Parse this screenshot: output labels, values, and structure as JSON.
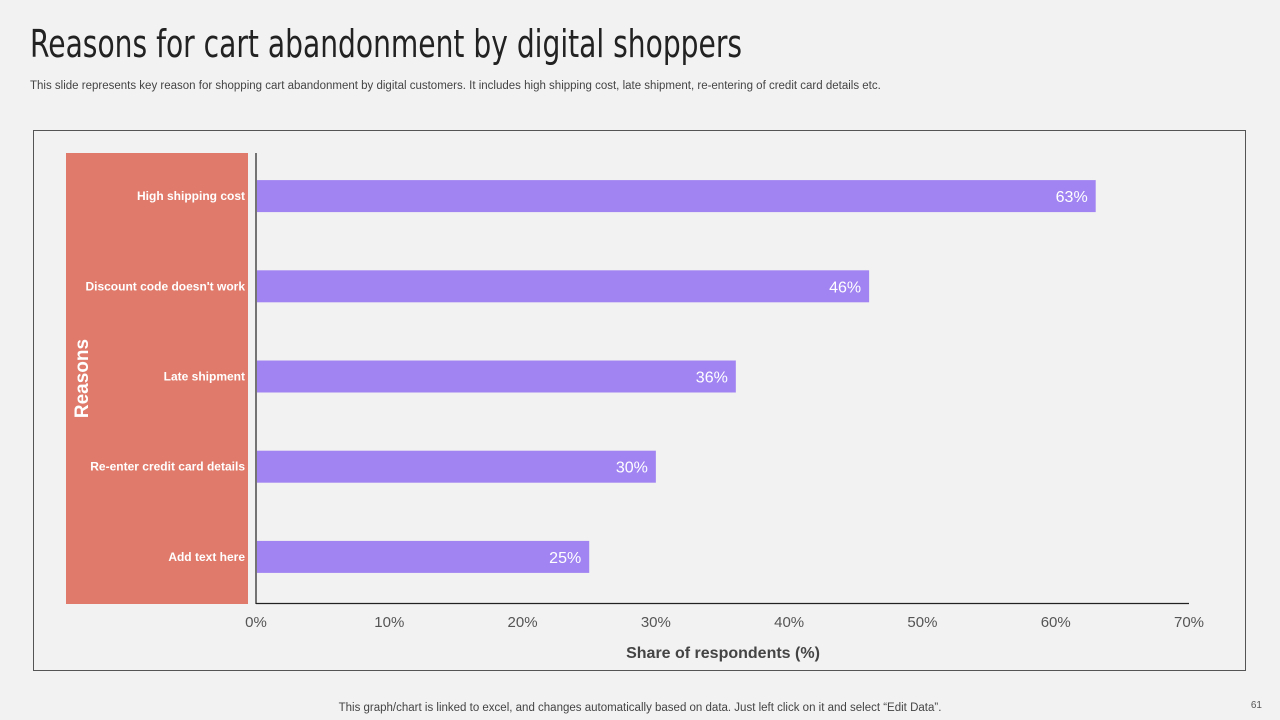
{
  "slide": {
    "title": "Reasons for cart abandonment by digital shoppers",
    "subtitle": "This slide represents  key reason for shopping cart abandonment by digital customers. It includes high shipping cost, late shipment, re-entering of credit card details etc.",
    "footer_note": "This graph/chart is linked to excel, and changes automatically based on data. Just left click on it and select “Edit Data”.",
    "page_number": "61"
  },
  "colors": {
    "bar": "#a184f2",
    "category_band": "#e07b6b",
    "background": "#f2f2f2"
  },
  "chart_data": {
    "type": "bar",
    "orientation": "horizontal",
    "categories": [
      "High shipping cost",
      "Discount code doesn't work",
      "Late shipment",
      "Re-enter credit card details",
      "Add text here"
    ],
    "values": [
      63,
      46,
      36,
      30,
      25
    ],
    "data_labels": [
      "63%",
      "46%",
      "36%",
      "30%",
      "25%"
    ],
    "xlabel": "Share of respondents (%)",
    "ylabel": "Reasons",
    "xlim": [
      0,
      70
    ],
    "xticks": [
      0,
      10,
      20,
      30,
      40,
      50,
      60,
      70
    ],
    "xtick_labels": [
      "0%",
      "10%",
      "20%",
      "30%",
      "40%",
      "50%",
      "60%",
      "70%"
    ],
    "grid": false,
    "legend": "none"
  }
}
